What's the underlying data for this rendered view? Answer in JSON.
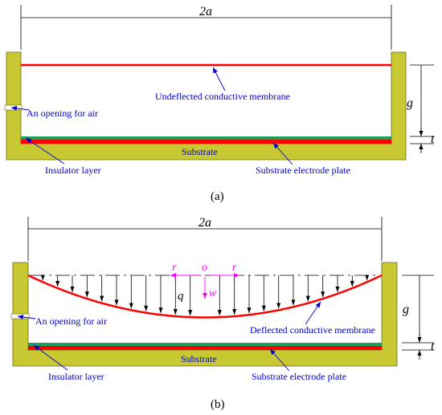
{
  "panel_a": {
    "span_label": "2a",
    "gap_label": "g",
    "thickness_label": "t",
    "membrane_label": "Undeflected conductive membrane",
    "opening_label": "An opening for air",
    "substrate_label": "Substrate",
    "insulator_label": "Insulator layer",
    "electrode_label": "Substrate electrode plate",
    "caption": "(a)"
  },
  "panel_b": {
    "span_label": "2a",
    "gap_label": "g",
    "thickness_label": "t",
    "membrane_label": "Deflected conductive membrane",
    "opening_label": "An opening for air",
    "substrate_label": "Substrate",
    "insulator_label": "Insulator layer",
    "electrode_label": "Substrate electrode plate",
    "load_label": "q",
    "origin_label": "o",
    "r_left_label": "r",
    "r_right_label": "r",
    "w_label": "w",
    "caption": "(b)"
  },
  "colors": {
    "frame": "#c8c832",
    "membrane": "#ff0000",
    "insulator": "#1aa05a",
    "electrode": "#ff0000",
    "label_text": "#0000cc",
    "axis_text": "#ff00ff"
  }
}
